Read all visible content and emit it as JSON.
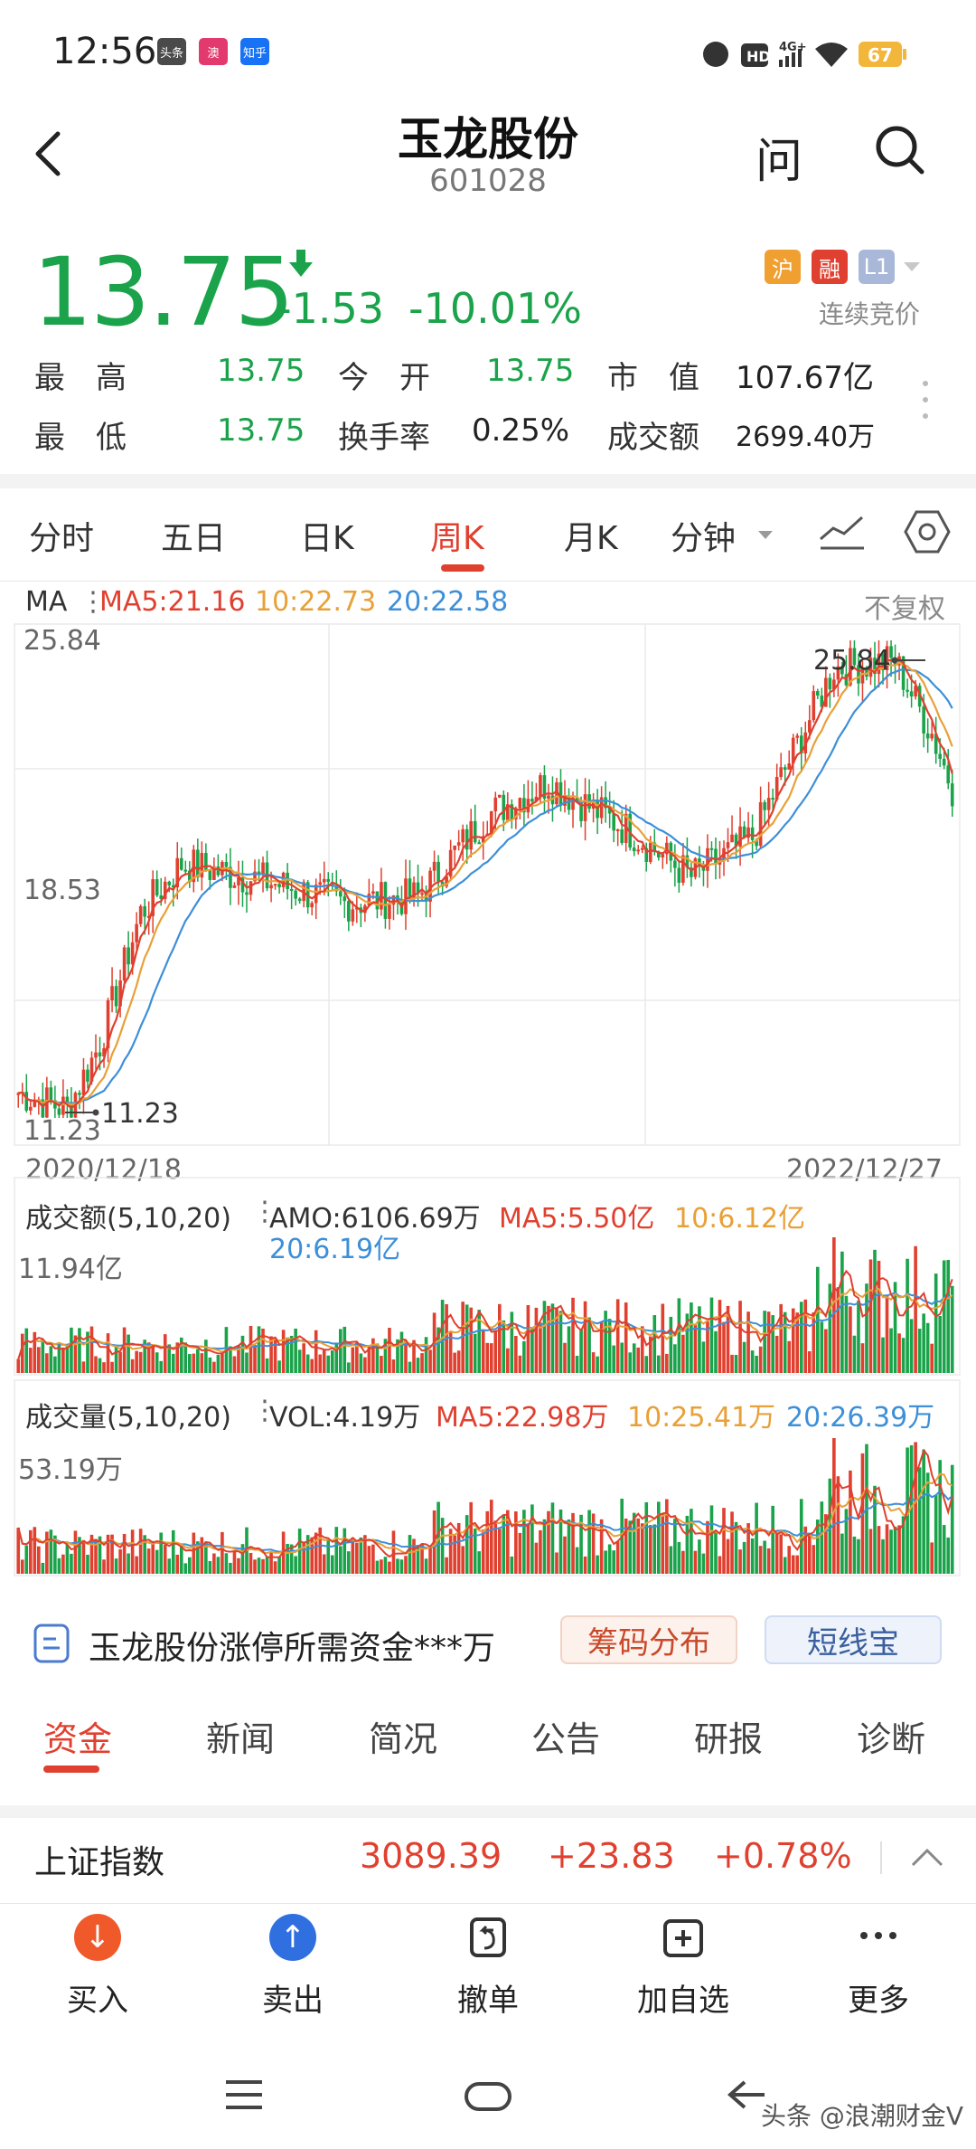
{
  "status_bar": {
    "time": "12:56",
    "app_badges": [
      "头条",
      "澳",
      "知乎"
    ],
    "network": "4G+",
    "battery": "67"
  },
  "header": {
    "title": "玉龙股份",
    "code": "601028",
    "ask_label": "问"
  },
  "quote": {
    "price": "13.75",
    "change": "-1.53",
    "change_pct": "-10.01%",
    "tags": [
      "沪",
      "融",
      "L1"
    ],
    "trading_mode": "连续竞价",
    "stats": {
      "high_label": "最　高",
      "high": "13.75",
      "open_label": "今　开",
      "open": "13.75",
      "mktcap_label": "市　值",
      "mktcap": "107.67亿",
      "low_label": "最　低",
      "low": "13.75",
      "turnover_label": "换手率",
      "turnover": "0.25%",
      "amount_label": "成交额",
      "amount": "2699.40万"
    }
  },
  "period_tabs": [
    "分时",
    "五日",
    "日K",
    "周K",
    "月K",
    "分钟"
  ],
  "active_period": "周K",
  "chart_data": [
    {
      "type": "candlestick",
      "legend": {
        "name": "MA",
        "ma5": "MA5:21.16",
        "ma10": "10:22.73",
        "ma20": "20:22.58",
        "adjust": "不复权"
      },
      "y_labels": [
        "25.84",
        "18.53",
        "11.23"
      ],
      "ylim": [
        11.23,
        25.84
      ],
      "max_label": "25.84",
      "min_label": "11.23",
      "x_start": "2020/12/18",
      "x_end": "2022/12/27",
      "ma_colors": {
        "ma5": "#e0402f",
        "ma10": "#e8a038",
        "ma20": "#3d8fd8"
      },
      "up_color": "#e0402f",
      "down_color": "#1aa34a"
    },
    {
      "type": "bar",
      "legend": {
        "name": "成交额(5,10,20)",
        "amo": "AMO:6106.69万",
        "ma5": "MA5:5.50亿",
        "ma10": "10:6.12亿",
        "ma20": "20:6.19亿"
      },
      "y_max_label": "11.94亿"
    },
    {
      "type": "bar",
      "legend": {
        "name": "成交量(5,10,20)",
        "vol": "VOL:4.19万",
        "ma5": "MA5:22.98万",
        "ma10": "10:25.41万",
        "ma20": "20:26.39万"
      },
      "y_max_label": "53.19万"
    }
  ],
  "promo": {
    "text": "玉龙股份涨停所需资金***万",
    "chip_label": "筹码分布",
    "short_label": "短线宝"
  },
  "info_tabs": [
    "资金",
    "新闻",
    "简况",
    "公告",
    "研报",
    "诊断"
  ],
  "active_info_tab": "资金",
  "index_bar": {
    "name": "上证指数",
    "value": "3089.39",
    "change": "+23.83",
    "change_pct": "+0.78%"
  },
  "actions": [
    {
      "label": "买入",
      "icon": "arrow-down-circle-icon"
    },
    {
      "label": "卖出",
      "icon": "arrow-up-circle-icon"
    },
    {
      "label": "撤单",
      "icon": "undo-doc-icon"
    },
    {
      "label": "加自选",
      "icon": "add-watchlist-icon"
    },
    {
      "label": "更多",
      "icon": "more-dots-icon"
    }
  ],
  "watermark": "头条 @浪潮财金V"
}
